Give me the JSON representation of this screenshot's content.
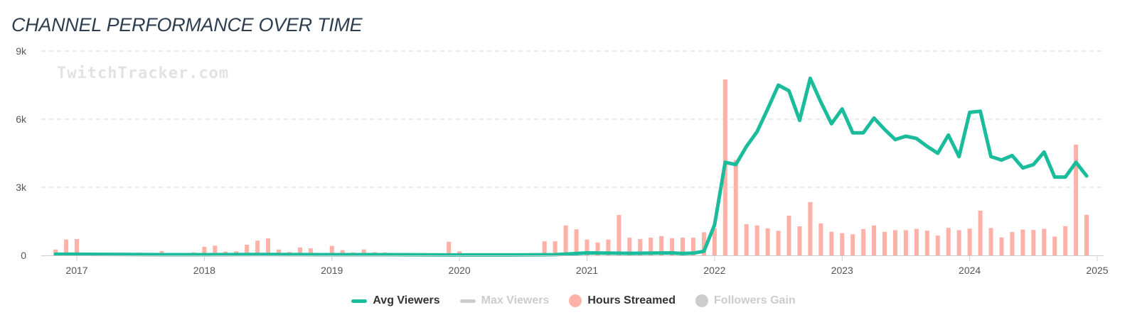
{
  "title": "CHANNEL PERFORMANCE OVER TIME",
  "watermark": "TwitchTracker.com",
  "colors": {
    "avg_viewers": "#1abc9c",
    "max_viewers": "#cccccc",
    "hours_streamed": "#ffb1a7",
    "followers_gain": "#cccccc",
    "grid": "#e6e6e6",
    "axis": "#cccccc",
    "title": "#2d3e50"
  },
  "legend": [
    {
      "label": "Avg Viewers",
      "symbol": "line",
      "color": "#1abc9c",
      "enabled": true
    },
    {
      "label": "Max Viewers",
      "symbol": "line",
      "color": "#cccccc",
      "enabled": false
    },
    {
      "label": "Hours Streamed",
      "symbol": "dot",
      "color": "#ffb1a7",
      "enabled": true
    },
    {
      "label": "Followers Gain",
      "symbol": "dot",
      "color": "#cccccc",
      "enabled": false
    }
  ],
  "chart_data": {
    "type": "bar",
    "title": "CHANNEL PERFORMANCE OVER TIME",
    "x_tick_labels": [
      "2017",
      "2018",
      "2019",
      "2020",
      "2021",
      "2022",
      "2023",
      "2024",
      "2025"
    ],
    "x_range": [
      "2016-10",
      "2025-01"
    ],
    "y_tick_labels": [
      "0",
      "3k",
      "6k",
      "9k"
    ],
    "ylim": [
      0,
      9000
    ],
    "grid": true,
    "legend_position": "bottom",
    "series": [
      {
        "name": "Hours Streamed",
        "type": "bar",
        "points": [
          [
            "2016-11",
            260
          ],
          [
            "2016-12",
            700
          ],
          [
            "2017-01",
            720
          ],
          [
            "2017-07",
            120
          ],
          [
            "2017-09",
            190
          ],
          [
            "2017-12",
            130
          ],
          [
            "2018-01",
            380
          ],
          [
            "2018-02",
            430
          ],
          [
            "2018-03",
            170
          ],
          [
            "2018-04",
            180
          ],
          [
            "2018-05",
            470
          ],
          [
            "2018-06",
            650
          ],
          [
            "2018-07",
            750
          ],
          [
            "2018-08",
            260
          ],
          [
            "2018-09",
            150
          ],
          [
            "2018-10",
            350
          ],
          [
            "2018-11",
            310
          ],
          [
            "2018-12",
            80
          ],
          [
            "2019-01",
            420
          ],
          [
            "2019-02",
            230
          ],
          [
            "2019-03",
            130
          ],
          [
            "2019-04",
            260
          ],
          [
            "2019-05",
            140
          ],
          [
            "2019-06",
            130
          ],
          [
            "2019-12",
            600
          ],
          [
            "2020-01",
            180
          ],
          [
            "2020-09",
            620
          ],
          [
            "2020-10",
            620
          ],
          [
            "2020-11",
            1320
          ],
          [
            "2020-12",
            1150
          ],
          [
            "2021-01",
            700
          ],
          [
            "2021-02",
            570
          ],
          [
            "2021-03",
            700
          ],
          [
            "2021-04",
            1780
          ],
          [
            "2021-05",
            780
          ],
          [
            "2021-06",
            720
          ],
          [
            "2021-07",
            780
          ],
          [
            "2021-08",
            850
          ],
          [
            "2021-09",
            760
          ],
          [
            "2021-10",
            780
          ],
          [
            "2021-11",
            780
          ],
          [
            "2021-12",
            1020
          ],
          [
            "2022-01",
            1200
          ],
          [
            "2022-02",
            7750
          ],
          [
            "2022-03",
            4200
          ],
          [
            "2022-04",
            1370
          ],
          [
            "2022-05",
            1320
          ],
          [
            "2022-06",
            1190
          ],
          [
            "2022-07",
            1080
          ],
          [
            "2022-08",
            1750
          ],
          [
            "2022-09",
            1280
          ],
          [
            "2022-10",
            2350
          ],
          [
            "2022-11",
            1410
          ],
          [
            "2022-12",
            1040
          ],
          [
            "2023-01",
            980
          ],
          [
            "2023-02",
            930
          ],
          [
            "2023-03",
            1160
          ],
          [
            "2023-04",
            1320
          ],
          [
            "2023-05",
            1040
          ],
          [
            "2023-06",
            1110
          ],
          [
            "2023-07",
            1110
          ],
          [
            "2023-08",
            1170
          ],
          [
            "2023-09",
            1090
          ],
          [
            "2023-10",
            870
          ],
          [
            "2023-11",
            1210
          ],
          [
            "2023-12",
            1110
          ],
          [
            "2024-01",
            1180
          ],
          [
            "2024-02",
            1970
          ],
          [
            "2024-03",
            1210
          ],
          [
            "2024-04",
            790
          ],
          [
            "2024-05",
            1030
          ],
          [
            "2024-06",
            1140
          ],
          [
            "2024-07",
            1120
          ],
          [
            "2024-08",
            1170
          ],
          [
            "2024-09",
            830
          ],
          [
            "2024-10",
            1290
          ],
          [
            "2024-11",
            4880
          ],
          [
            "2024-12",
            1790
          ]
        ]
      },
      {
        "name": "Avg Viewers",
        "type": "line",
        "points": [
          [
            "2016-11",
            50
          ],
          [
            "2017-01",
            50
          ],
          [
            "2017-06",
            40
          ],
          [
            "2017-09",
            30
          ],
          [
            "2018-01",
            30
          ],
          [
            "2018-06",
            40
          ],
          [
            "2018-12",
            30
          ],
          [
            "2019-06",
            30
          ],
          [
            "2019-12",
            20
          ],
          [
            "2020-06",
            20
          ],
          [
            "2020-10",
            30
          ],
          [
            "2020-12",
            80
          ],
          [
            "2021-01",
            110
          ],
          [
            "2021-03",
            100
          ],
          [
            "2021-05",
            90
          ],
          [
            "2021-07",
            100
          ],
          [
            "2021-09",
            110
          ],
          [
            "2021-10",
            80
          ],
          [
            "2021-11",
            100
          ],
          [
            "2021-12",
            180
          ],
          [
            "2022-01",
            1350
          ],
          [
            "2022-02",
            4100
          ],
          [
            "2022-03",
            4000
          ],
          [
            "2022-04",
            4800
          ],
          [
            "2022-05",
            5450
          ],
          [
            "2022-06",
            6450
          ],
          [
            "2022-07",
            7500
          ],
          [
            "2022-08",
            7250
          ],
          [
            "2022-09",
            5950
          ],
          [
            "2022-10",
            7800
          ],
          [
            "2022-11",
            6750
          ],
          [
            "2022-12",
            5800
          ],
          [
            "2023-01",
            6450
          ],
          [
            "2023-02",
            5400
          ],
          [
            "2023-03",
            5400
          ],
          [
            "2023-04",
            6050
          ],
          [
            "2023-05",
            5550
          ],
          [
            "2023-06",
            5100
          ],
          [
            "2023-07",
            5250
          ],
          [
            "2023-08",
            5150
          ],
          [
            "2023-09",
            4800
          ],
          [
            "2023-10",
            4500
          ],
          [
            "2023-11",
            5300
          ],
          [
            "2023-12",
            4350
          ],
          [
            "2024-01",
            6300
          ],
          [
            "2024-02",
            6350
          ],
          [
            "2024-03",
            4350
          ],
          [
            "2024-04",
            4200
          ],
          [
            "2024-05",
            4400
          ],
          [
            "2024-06",
            3850
          ],
          [
            "2024-07",
            4000
          ],
          [
            "2024-08",
            4550
          ],
          [
            "2024-09",
            3450
          ],
          [
            "2024-10",
            3450
          ],
          [
            "2024-11",
            4100
          ],
          [
            "2024-12",
            3500
          ]
        ]
      }
    ]
  }
}
